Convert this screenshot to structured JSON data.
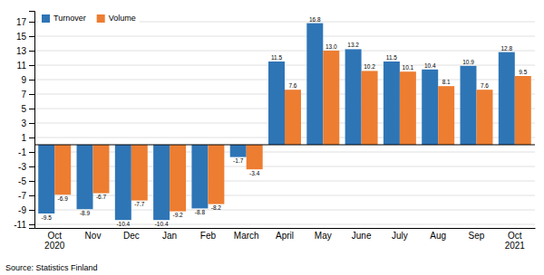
{
  "chart_data": {
    "type": "bar",
    "categories": [
      "Oct\n2020",
      "Nov",
      "Dec",
      "Jan",
      "Feb",
      "March",
      "April",
      "May",
      "June",
      "July",
      "Aug",
      "Sep",
      "Oct\n2021"
    ],
    "series": [
      {
        "name": "Turnover",
        "color": "#2E75B6",
        "values": [
          -9.5,
          -8.9,
          -10.4,
          -10.4,
          -8.8,
          -1.7,
          11.5,
          16.8,
          13.2,
          11.5,
          10.4,
          10.9,
          12.8
        ],
        "value_labels": [
          "-9.5",
          "-8.9",
          "-10.4",
          "-10.4",
          "-8.8",
          "-1.7",
          "11.5",
          "16.8",
          "13.2",
          "11.5",
          "10.4",
          "10.9",
          "12.8"
        ]
      },
      {
        "name": "Volume",
        "color": "#ED7D31",
        "values": [
          -6.9,
          -6.7,
          -7.7,
          -9.2,
          -8.2,
          -3.4,
          7.6,
          13.0,
          10.2,
          10.1,
          8.1,
          7.6,
          9.5
        ],
        "value_labels": [
          "-6.9",
          "-6.7",
          "-7.7",
          "-9.2",
          "-8.2",
          "-3.4",
          "7.6",
          "13.0",
          "10.2",
          "10.1",
          "8.1",
          "7.6",
          "9.5"
        ]
      }
    ],
    "ylim": [
      -11.5,
      18.5
    ],
    "yticks": [
      -11,
      -9,
      -7,
      -5,
      -3,
      -1,
      1,
      3,
      5,
      7,
      9,
      11,
      13,
      15,
      17
    ],
    "grid": true,
    "legend": "upper left",
    "data_labels": true,
    "annotations": [
      "Source: Statistics Finland"
    ]
  }
}
